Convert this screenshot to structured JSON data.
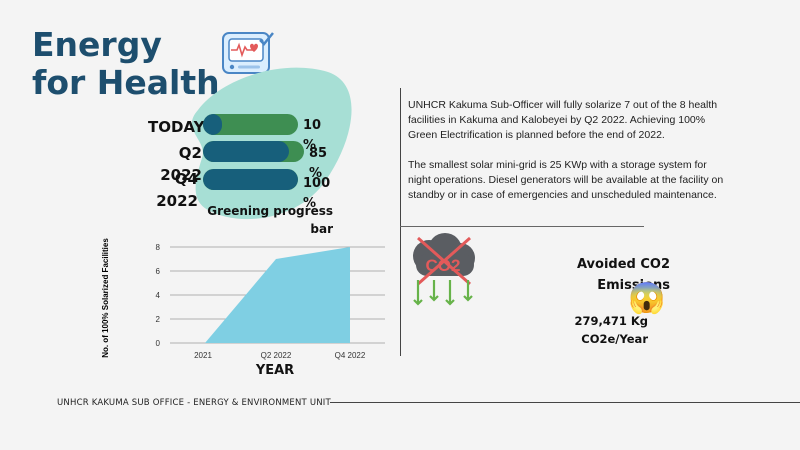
{
  "title": {
    "line1": "Energy",
    "line2": "for Health"
  },
  "icons": {
    "health_monitor": "heart-monitor-icon",
    "co2": "co2-cloud-icon",
    "shock": "shocked-face-icon"
  },
  "colors": {
    "title": "#1d4e6e",
    "progress_track": "#3e8e52",
    "progress_fill": "#175f7b",
    "blob": "#a7dfd5",
    "chart_area": "#7fcfe3"
  },
  "progress": {
    "caption": "Greening progress bar",
    "rows": [
      {
        "label": "TODAY",
        "pct_text": "10 %",
        "value": 0.1
      },
      {
        "label": "Q2 2022",
        "pct_text": "85 %",
        "value": 0.85
      },
      {
        "label": "Q4 2022",
        "pct_text": "100 %",
        "value": 1.0
      }
    ]
  },
  "description": {
    "p1": "UNHCR Kakuma Sub-Officer will fully solarize 7 out of the 8 health facilities in Kakuma and Kalobeyei by Q2 2022. Achieving 100% Green Electrification is planned before the end of 2022.",
    "p2": "The smallest solar mini-grid is 25 KWp with a storage system for night operations. Diesel generators will be available at the facility on standby or in case of emergencies and unscheduled maintenance."
  },
  "chart_data": {
    "type": "area",
    "x": [
      "2021",
      "Q2 2022",
      "Q4 2022"
    ],
    "values": [
      0,
      7,
      8
    ],
    "xlabel": "YEAR",
    "ylabel": "No. of 100% Solarized Facilities",
    "ylim": [
      0,
      8
    ],
    "yticks": [
      0,
      2,
      4,
      6,
      8
    ],
    "grid": true
  },
  "co2": {
    "badge": "CO2",
    "title": "Avoided CO2 Emissions",
    "value": "279,471 Kg CO2e/Year",
    "emoji": "😱"
  },
  "footer": "UNHCR KAKUMA SUB OFFICE - ENERGY & ENVIRONMENT UNIT"
}
